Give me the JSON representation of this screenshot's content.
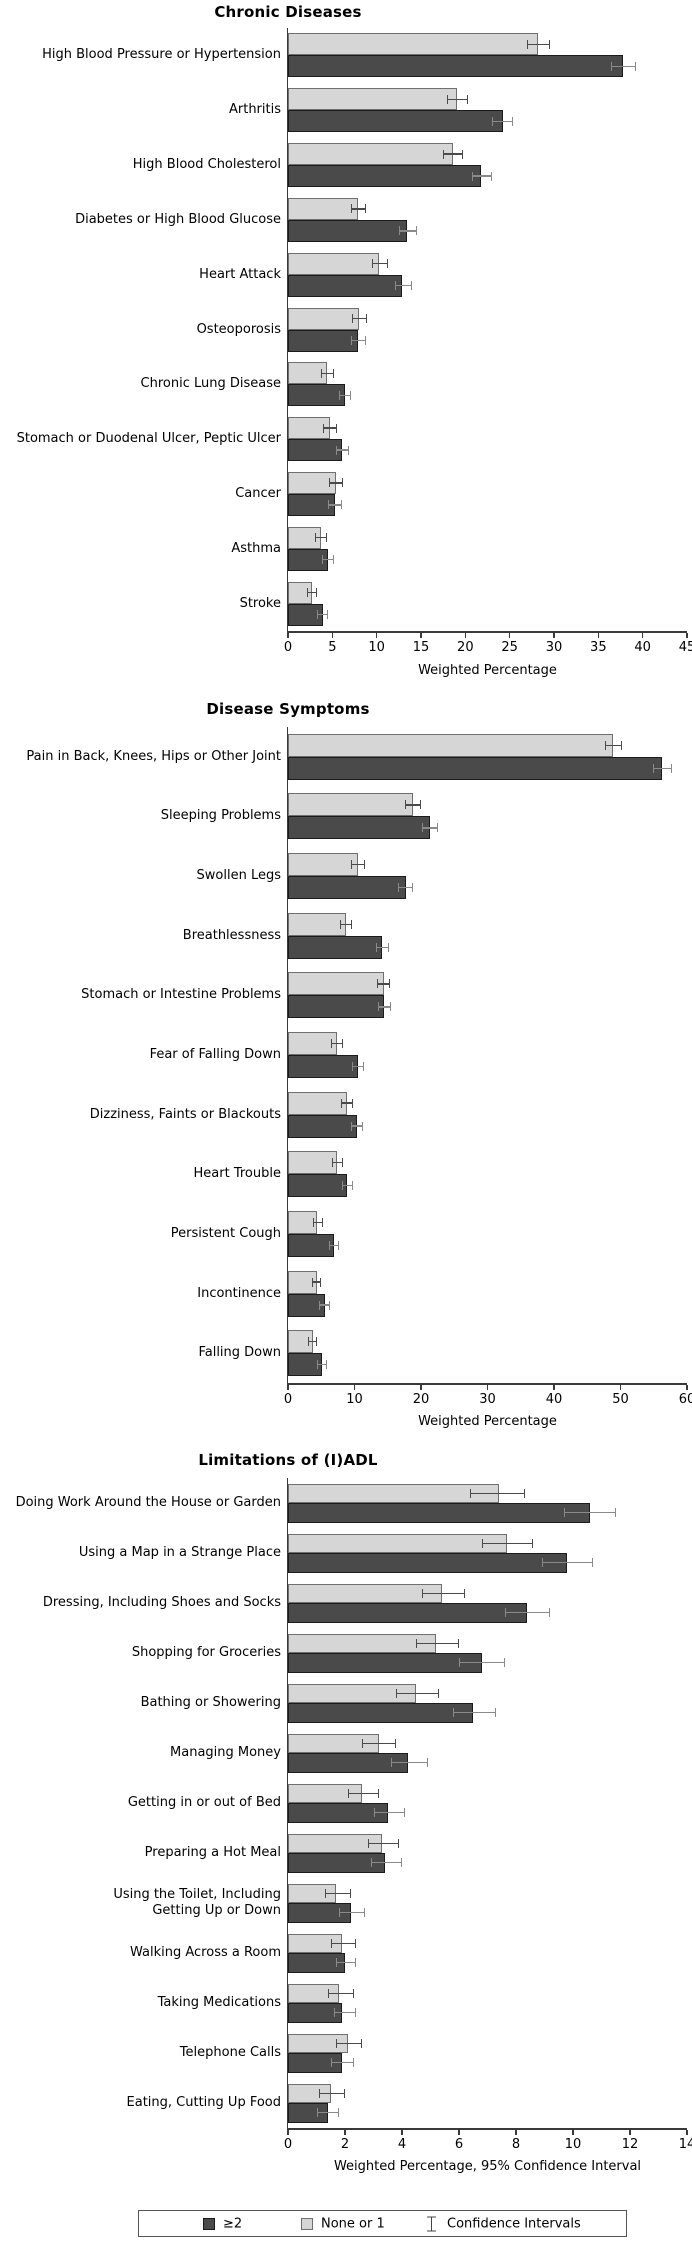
{
  "legend": {
    "items": [
      {
        "label": "≥2",
        "swatch": "dark"
      },
      {
        "label": "None or 1",
        "swatch": "light"
      },
      {
        "label": "Confidence Intervals",
        "swatch": "errorbar"
      }
    ]
  },
  "colors": {
    "bar_dark": "#4a4a4a",
    "bar_dark_border": "#1b1b1b",
    "bar_light": "#d6d6d6",
    "bar_light_border": "#6f6f6f",
    "ci_on_light": "#4a4a4a",
    "ci_on_dark": "#8a8a8a",
    "axis": "#3a3a3a",
    "text": "#000000",
    "background": "#ffffff"
  },
  "chart_data": [
    {
      "type": "bar",
      "orientation": "horizontal",
      "title": "Chronic Diseases",
      "xlabel": "Weighted Percentage",
      "xlim": [
        0,
        45
      ],
      "xticks": [
        0,
        5,
        10,
        15,
        20,
        25,
        30,
        35,
        40,
        45
      ],
      "grid": false,
      "categories": [
        "High Blood Pressure or Hypertension",
        "Arthritis",
        "High Blood Cholesterol",
        "Diabetes or High Blood Glucose",
        "Heart Attack",
        "Osteoporosis",
        "Chronic Lung Disease",
        "Stomach or Duodenal Ulcer, Peptic Ulcer",
        "Cancer",
        "Asthma",
        "Stroke"
      ],
      "series": [
        {
          "name": "None or 1",
          "role": "light",
          "values": [
            28.2,
            19.1,
            18.6,
            7.9,
            10.3,
            8.0,
            4.4,
            4.7,
            5.4,
            3.7,
            2.7
          ],
          "ci_low": [
            26.9,
            17.9,
            17.5,
            7.1,
            9.5,
            7.2,
            3.7,
            4.0,
            4.6,
            3.0,
            2.1
          ],
          "ci_high": [
            29.5,
            20.3,
            19.7,
            8.8,
            11.3,
            8.9,
            5.2,
            5.5,
            6.2,
            4.4,
            3.3
          ]
        },
        {
          "name": "≥2",
          "role": "dark",
          "values": [
            37.8,
            24.2,
            21.8,
            13.4,
            12.9,
            7.9,
            6.4,
            6.1,
            5.3,
            4.5,
            3.9
          ],
          "ci_low": [
            36.4,
            23.0,
            20.7,
            12.5,
            12.1,
            7.1,
            5.7,
            5.4,
            4.5,
            3.8,
            3.3
          ],
          "ci_high": [
            39.2,
            25.4,
            23.0,
            14.5,
            14.0,
            8.8,
            7.1,
            6.9,
            6.1,
            5.2,
            4.5
          ]
        }
      ]
    },
    {
      "type": "bar",
      "orientation": "horizontal",
      "title": "Disease Symptoms",
      "xlabel": "Weighted Percentage",
      "xlim": [
        0,
        60
      ],
      "xticks": [
        0,
        10,
        20,
        30,
        40,
        50,
        60
      ],
      "grid": false,
      "categories": [
        "Pain in Back, Knees, Hips or Other Joint",
        "Sleeping Problems",
        "Swollen Legs",
        "Breathlessness",
        "Stomach or Intestine Problems",
        "Fear of Falling Down",
        "Dizziness, Faints or Blackouts",
        "Heart Trouble",
        "Persistent Cough",
        "Incontinence",
        "Falling Down"
      ],
      "series": [
        {
          "name": "None or 1",
          "role": "light",
          "values": [
            48.9,
            18.8,
            10.5,
            8.7,
            14.4,
            7.4,
            8.8,
            7.4,
            4.4,
            4.3,
            3.7
          ],
          "ci_low": [
            47.6,
            17.6,
            9.5,
            7.8,
            13.4,
            6.5,
            7.9,
            6.6,
            3.7,
            3.6,
            3.0
          ],
          "ci_high": [
            50.2,
            20.0,
            11.6,
            9.7,
            15.4,
            8.3,
            9.7,
            8.3,
            5.2,
            5.0,
            4.4
          ]
        },
        {
          "name": "≥2",
          "role": "dark",
          "values": [
            56.3,
            21.3,
            17.7,
            14.2,
            14.5,
            10.5,
            10.4,
            8.9,
            6.9,
            5.5,
            5.1
          ],
          "ci_low": [
            54.9,
            20.1,
            16.6,
            13.3,
            13.5,
            9.6,
            9.5,
            8.1,
            6.1,
            4.7,
            4.4
          ],
          "ci_high": [
            57.7,
            22.5,
            18.8,
            15.2,
            15.5,
            11.4,
            11.3,
            9.8,
            7.7,
            6.3,
            5.9
          ]
        }
      ]
    },
    {
      "type": "bar",
      "orientation": "horizontal",
      "title": "Limitations of (I)ADL",
      "xlabel": "Weighted Percentage, 95% Confidence Interval",
      "xlim": [
        0,
        14
      ],
      "xticks": [
        0,
        2,
        4,
        6,
        8,
        10,
        12,
        14
      ],
      "grid": false,
      "categories": [
        "Doing Work Around the House or Garden",
        "Using a Map in a Strange Place",
        "Dressing, Including Shoes and Socks",
        "Shopping for Groceries",
        "Bathing or Showering",
        "Managing Money",
        "Getting in or out of Bed",
        "Preparing a Hot Meal",
        "Using the Toilet, Including\nGetting Up or Down",
        "Walking Across a Room",
        "Taking Medications",
        "Telephone Calls",
        "Eating, Cutting Up Food"
      ],
      "series": [
        {
          "name": "None or 1",
          "role": "light",
          "values": [
            7.4,
            7.7,
            5.4,
            5.2,
            4.5,
            3.2,
            2.6,
            3.3,
            1.7,
            1.9,
            1.8,
            2.1,
            1.5
          ],
          "ci_low": [
            6.4,
            6.8,
            4.7,
            4.5,
            3.8,
            2.6,
            2.1,
            2.8,
            1.3,
            1.5,
            1.4,
            1.7,
            1.1
          ],
          "ci_high": [
            8.3,
            8.6,
            6.2,
            6.0,
            5.3,
            3.8,
            3.2,
            3.9,
            2.2,
            2.4,
            2.3,
            2.6,
            2.0
          ]
        },
        {
          "name": "≥2",
          "role": "dark",
          "values": [
            10.6,
            9.8,
            8.4,
            6.8,
            6.5,
            4.2,
            3.5,
            3.4,
            2.2,
            2.0,
            1.9,
            1.9,
            1.4
          ],
          "ci_low": [
            9.7,
            8.9,
            7.6,
            6.0,
            5.8,
            3.6,
            3.0,
            2.9,
            1.8,
            1.7,
            1.6,
            1.5,
            1.0
          ],
          "ci_high": [
            11.5,
            10.7,
            9.2,
            7.6,
            7.3,
            4.9,
            4.1,
            4.0,
            2.7,
            2.4,
            2.4,
            2.3,
            1.8
          ]
        }
      ]
    }
  ]
}
